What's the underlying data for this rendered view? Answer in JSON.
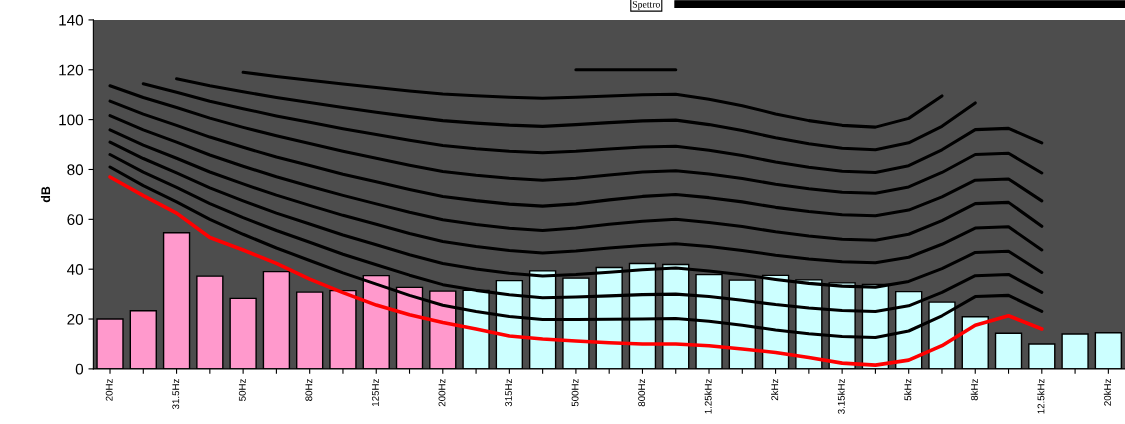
{
  "chart_data": {
    "type": "bar",
    "ylabel": "dB",
    "ylim": [
      0,
      140
    ],
    "yticks": [
      0,
      20,
      40,
      60,
      80,
      100,
      120,
      140
    ],
    "grid": false,
    "annotations": [
      "Spettro"
    ],
    "categories": [
      "20Hz",
      null,
      "31.5Hz",
      null,
      "50Hz",
      null,
      "80Hz",
      null,
      "125Hz",
      null,
      "200Hz",
      null,
      "315Hz",
      null,
      "500Hz",
      null,
      "800Hz",
      null,
      "1.25kHz",
      null,
      "2kHz",
      null,
      "3.15kHz",
      null,
      "5kHz",
      null,
      "8kHz",
      null,
      "12.5kHz",
      null,
      "20kHz"
    ],
    "series": [
      {
        "colors": [
          "#ff99cc",
          "#ff99cc",
          "#ff99cc",
          "#ff99cc",
          "#ff99cc",
          "#ff99cc",
          "#ff99cc",
          "#ff99cc",
          "#ff99cc",
          "#ff99cc",
          "#ff99cc",
          "#ccffff",
          "#ccffff",
          "#ccffff",
          "#ccffff",
          "#ccffff",
          "#ccffff",
          "#ccffff",
          "#ccffff",
          "#ccffff",
          "#ccffff",
          "#ccffff",
          "#ccffff",
          "#ccffff",
          "#ccffff",
          "#ccffff",
          "#ccffff",
          "#ccffff",
          "#ccffff",
          "#ccffff",
          "#ccffff"
        ],
        "values": [
          20,
          23.3,
          54.6,
          37.2,
          28.3,
          39,
          30.8,
          31.4,
          37.4,
          32.7,
          31.2,
          31.5,
          35.4,
          39.3,
          36.4,
          40.7,
          42.3,
          41.9,
          37.8,
          35.6,
          37.5,
          35.7,
          34.5,
          33.9,
          31,
          26.8,
          20.9,
          14.3,
          10,
          14,
          14.5
        ]
      },
      {
        "type": "line",
        "color": "#000000",
        "values": [
          81,
          73.5,
          67,
          60,
          54,
          48.5,
          43.5,
          38.5,
          34,
          29.5,
          25.5,
          23,
          21,
          19.8,
          19.8,
          19.9,
          20,
          20.2,
          19.1,
          17.5,
          15.6,
          14.1,
          13,
          12.6,
          15.2,
          21.3,
          29,
          29.5,
          23.1,
          null,
          null
        ]
      },
      {
        "type": "line",
        "color": "#000000",
        "values": [
          86,
          78.9,
          72.8,
          66.3,
          60.7,
          55.5,
          50.8,
          46,
          41.8,
          37.6,
          33.8,
          31.5,
          29.7,
          28.5,
          28.8,
          29.3,
          29.8,
          30,
          29,
          27.5,
          25.8,
          24.4,
          23.4,
          23,
          25.3,
          30.7,
          37.4,
          37.9,
          30.7,
          null,
          null
        ]
      },
      {
        "type": "line",
        "color": "#000000",
        "values": [
          91,
          84.4,
          78.6,
          72.6,
          67.4,
          62.5,
          58.1,
          53.7,
          49.8,
          45.8,
          42.3,
          40.1,
          38.4,
          37.3,
          37.9,
          38.8,
          39.8,
          40.5,
          39.3,
          37.8,
          35.9,
          34.3,
          33.2,
          32.8,
          35.1,
          40.2,
          46.7,
          47.2,
          38.7,
          null,
          null
        ]
      },
      {
        "type": "line",
        "color": "#000000",
        "values": [
          95.9,
          89.8,
          84.5,
          79,
          74.2,
          69.7,
          65.6,
          61.6,
          58,
          54.3,
          51.1,
          49.1,
          47.5,
          46.5,
          47.3,
          48.5,
          49.5,
          50.2,
          49.1,
          47.5,
          45.6,
          44.1,
          43,
          42.6,
          44.8,
          50,
          56.5,
          57,
          47.7,
          null,
          null
        ]
      },
      {
        "type": "line",
        "color": "#000000",
        "values": [
          101.6,
          95.9,
          91,
          85.8,
          81.3,
          77.1,
          73.3,
          69.6,
          66.2,
          62.8,
          59.8,
          57.9,
          56.4,
          55.5,
          56.5,
          58,
          59.2,
          60,
          58.7,
          57.1,
          55,
          53.3,
          52,
          51.6,
          54,
          59.5,
          66.3,
          66.8,
          57.2,
          null,
          null
        ]
      },
      {
        "type": "line",
        "color": "#000000",
        "values": [
          107.4,
          102.2,
          97.7,
          93,
          88.9,
          85,
          81.6,
          78.1,
          75.1,
          72,
          69.2,
          67.5,
          66.1,
          65.3,
          66.2,
          67.8,
          69.2,
          70,
          68.7,
          67,
          64.8,
          63.1,
          61.8,
          61.4,
          63.7,
          69,
          75.7,
          76.2,
          67.4,
          null,
          null
        ]
      },
      {
        "type": "line",
        "color": "#000000",
        "values": [
          113.6,
          108.9,
          104.9,
          100.6,
          96.9,
          93.5,
          90.4,
          87.3,
          84.5,
          81.7,
          79.2,
          77.7,
          76.5,
          75.7,
          76.5,
          77.8,
          79,
          79.5,
          78.2,
          76.4,
          74.1,
          72.3,
          70.9,
          70.5,
          73,
          78.8,
          86,
          86.5,
          78.6,
          null,
          null
        ]
      },
      {
        "type": "line",
        "color": "#000000",
        "values": [
          null,
          114.4,
          111,
          107.4,
          104.4,
          101.5,
          98.9,
          96.3,
          94,
          91.7,
          89.6,
          88.3,
          87.3,
          86.7,
          87.3,
          88.2,
          89,
          89.3,
          87.7,
          85.6,
          83,
          80.9,
          79.3,
          78.8,
          81.5,
          87.9,
          96,
          96.5,
          90.7,
          null,
          null
        ]
      },
      {
        "type": "line",
        "color": "#000000",
        "values": [
          null,
          null,
          116.4,
          113.6,
          111.2,
          108.9,
          106.9,
          104.9,
          103,
          101.2,
          99.6,
          98.6,
          97.8,
          97.3,
          98,
          98.8,
          99.5,
          99.8,
          98,
          95.6,
          92.7,
          90.3,
          88.5,
          87.9,
          90.7,
          97.3,
          106.7,
          null,
          null,
          null,
          null
        ]
      },
      {
        "type": "line",
        "color": "#000000",
        "values": [
          null,
          null,
          null,
          null,
          119,
          117.3,
          115.8,
          114.3,
          112.9,
          111.5,
          110.3,
          109.6,
          109,
          108.6,
          109,
          109.5,
          110,
          110.2,
          108.2,
          105.6,
          102.3,
          99.6,
          97.7,
          97,
          100.5,
          109.5,
          null,
          null,
          null,
          null,
          null
        ]
      },
      {
        "type": "line",
        "color": "#000000",
        "values": [
          null,
          null,
          null,
          null,
          null,
          null,
          null,
          null,
          null,
          null,
          null,
          null,
          null,
          null,
          120,
          120,
          120,
          120,
          null,
          null,
          null,
          null,
          null,
          null,
          null,
          null,
          null,
          null,
          null,
          null,
          null
        ]
      },
      {
        "type": "line",
        "color": "#ff0000",
        "values": [
          77,
          69.5,
          62.5,
          52.7,
          47.7,
          42.3,
          36,
          30.6,
          25.6,
          21.7,
          18.6,
          16,
          13.2,
          12,
          11.2,
          10.5,
          10,
          10,
          9.3,
          8,
          6.6,
          4.6,
          2.3,
          1.5,
          3.5,
          9.3,
          17.5,
          21.3,
          16,
          null,
          null
        ]
      }
    ]
  }
}
